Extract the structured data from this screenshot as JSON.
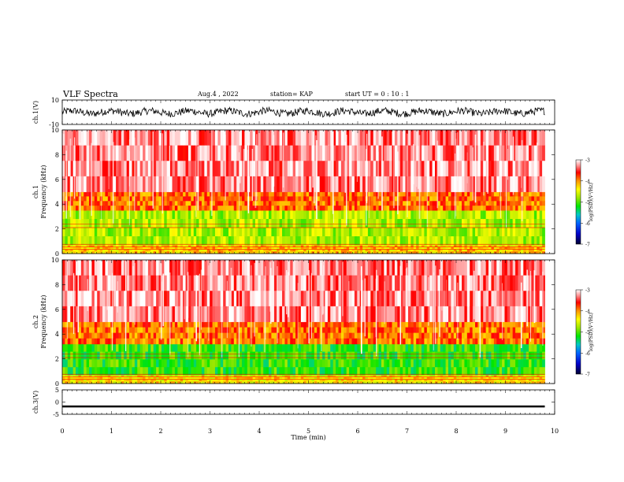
{
  "header": {
    "title": "VLF Spectra",
    "date": "Aug.4 , 2022",
    "station": "station= KAP",
    "start_ut": "start UT =  0 : 10 : 1"
  },
  "colors": {
    "waveform": "#000000",
    "colormap": [
      "#000000",
      "#0000c8",
      "#008cff",
      "#00c8c8",
      "#00e600",
      "#9be600",
      "#ffff00",
      "#ff9600",
      "#ff0000",
      "#ffffff"
    ]
  },
  "chart_data": [
    {
      "type": "line",
      "panel": "ch1-waveform",
      "ylabel": "ch.1(V)",
      "ylim": [
        -10,
        10
      ],
      "yticks": [
        10,
        -10
      ],
      "xlim": [
        0,
        10
      ],
      "description_visible": "dense black waveform oscillating roughly between -3 and 3 V across the full 0-9.8 min window",
      "x_end": 9.8
    },
    {
      "type": "heatmap",
      "panel": "ch1-spectrogram",
      "ylabel": "ch.1",
      "ylabel2": "Frequency (kHz)",
      "ylim": [
        0,
        10
      ],
      "yticks": [
        0,
        2,
        4,
        6,
        8,
        10
      ],
      "xlim": [
        0,
        10
      ],
      "x_end": 9.8,
      "colorbar": {
        "label": "log(PSD)(V²/Hz)",
        "range": [
          -7,
          -3
        ],
        "ticks": [
          -3,
          -4,
          -5,
          -6,
          -7
        ]
      },
      "bands": [
        {
          "from_khz": 0,
          "to_khz": 0.7,
          "level": -4.2
        },
        {
          "from_khz": 0.7,
          "to_khz": 3.5,
          "level": -4.7
        },
        {
          "from_khz": 3.5,
          "to_khz": 5,
          "level": -3.9
        },
        {
          "from_khz": 5,
          "to_khz": 10,
          "level": -3.3
        }
      ]
    },
    {
      "type": "heatmap",
      "panel": "ch2-spectrogram",
      "ylabel": "ch.2",
      "ylabel2": "Frequency (kHz)",
      "ylim": [
        0,
        10
      ],
      "yticks": [
        0,
        2,
        4,
        6,
        8,
        10
      ],
      "xlim": [
        0,
        10
      ],
      "x_end": 9.8,
      "colorbar": {
        "label": "log(PSD)(V²/Hz)",
        "range": [
          -7,
          -3
        ],
        "ticks": [
          -3,
          -4,
          -5,
          -6,
          -7
        ]
      },
      "bands": [
        {
          "from_khz": 0,
          "to_khz": 0.7,
          "level": -4.3
        },
        {
          "from_khz": 0.7,
          "to_khz": 3.2,
          "level": -5.1
        },
        {
          "from_khz": 3.2,
          "to_khz": 5,
          "level": -3.9
        },
        {
          "from_khz": 5,
          "to_khz": 10,
          "level": -3.3
        }
      ]
    },
    {
      "type": "line",
      "panel": "ch3-waveform",
      "ylabel": "ch.3(V)",
      "ylim": [
        -5,
        5
      ],
      "yticks": [
        5,
        0,
        -5
      ],
      "xlim": [
        0,
        10
      ],
      "x_end": 9.8,
      "level": -1.8,
      "spread": 0.4
    }
  ],
  "xaxis": {
    "label": "Time  (min)",
    "ticks": [
      0,
      1,
      2,
      3,
      4,
      5,
      6,
      7,
      8,
      9,
      10
    ]
  }
}
